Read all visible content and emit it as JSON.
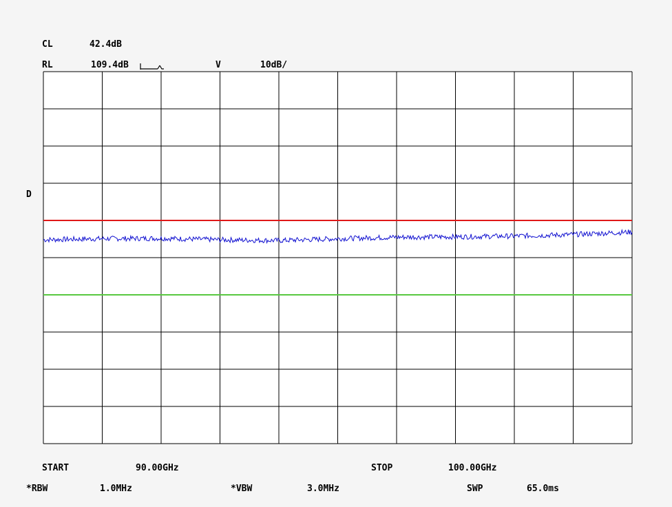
{
  "header": {
    "cl_label": "CL",
    "cl_value": "42.4dB",
    "rl_label": "RL",
    "rl_value": "109.4dB",
    "v_label": "V",
    "scale": "10dB/"
  },
  "side_label": "D",
  "footer": {
    "start_label": "START",
    "start_value": "90.00GHz",
    "stop_label": "STOP",
    "stop_value": "100.00GHz",
    "rbw_label": "*RBW",
    "rbw_value": "1.0MHz",
    "vbw_label": "*VBW",
    "vbw_value": "3.0MHz",
    "swp_label": "SWP",
    "swp_value": "65.0ms"
  },
  "chart_data": {
    "type": "line",
    "x_range_ghz": [
      90.0,
      100.0
    ],
    "reference_level_db": 109.4,
    "db_per_div": 10,
    "divisions_x": 10,
    "divisions_y": 10,
    "grid": true,
    "series": [
      {
        "color": "#1010d0",
        "x": [
          90,
          91,
          92,
          93,
          94,
          95,
          96,
          97,
          98,
          99,
          100
        ],
        "y": [
          64.2,
          64.5,
          64.6,
          64.2,
          64.0,
          64.5,
          64.9,
          65.0,
          65.2,
          65.6,
          66.3
        ]
      }
    ],
    "limit_lines": [
      {
        "color": "#e01818",
        "y": 69.4
      },
      {
        "color": "#58c840",
        "y": 49.4
      }
    ]
  }
}
